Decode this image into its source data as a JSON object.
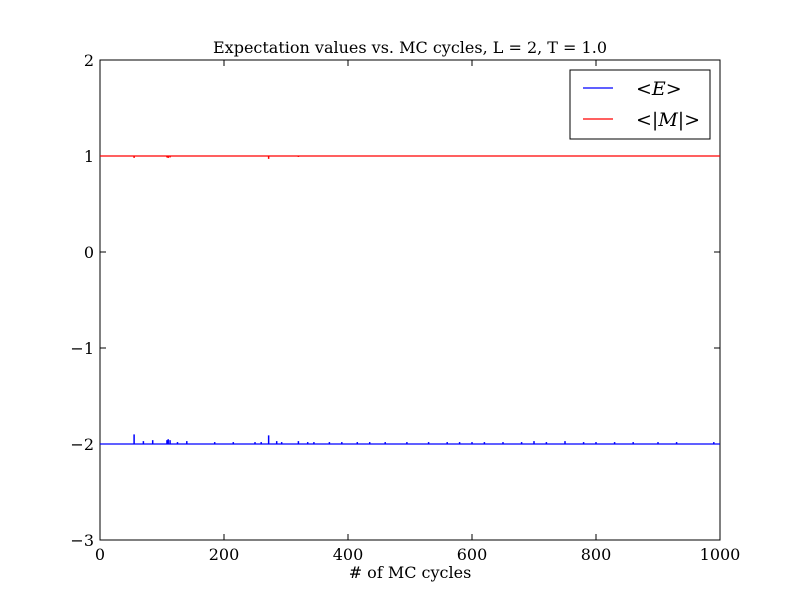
{
  "chart_data": {
    "type": "line",
    "title": "Expectation values vs. MC cycles, L = 2, T = 1.0",
    "xlabel": "# of MC cycles",
    "ylabel": "",
    "xlim": [
      0,
      1000
    ],
    "ylim": [
      -3,
      2
    ],
    "xticks": [
      0,
      200,
      400,
      600,
      800,
      1000
    ],
    "xtick_labels": [
      "0",
      "200",
      "400",
      "600",
      "800",
      "1000"
    ],
    "yticks": [
      -3,
      -2,
      -1,
      0,
      1,
      2
    ],
    "ytick_labels": [
      "−3",
      "−2",
      "−1",
      "0",
      "1",
      "2"
    ],
    "grid": false,
    "legend_position": "top-right",
    "series": [
      {
        "name": "<E>",
        "color": "#0000ff",
        "baseline": -2.0,
        "spikes": [
          [
            55,
            -1.9
          ],
          [
            70,
            -1.97
          ],
          [
            85,
            -1.96
          ],
          [
            108,
            -1.96
          ],
          [
            110,
            -1.95
          ],
          [
            113,
            -1.96
          ],
          [
            125,
            -1.98
          ],
          [
            140,
            -1.97
          ],
          [
            185,
            -1.98
          ],
          [
            215,
            -1.98
          ],
          [
            250,
            -1.98
          ],
          [
            260,
            -1.98
          ],
          [
            272,
            -1.91
          ],
          [
            285,
            -1.97
          ],
          [
            293,
            -1.98
          ],
          [
            320,
            -1.97
          ],
          [
            335,
            -1.98
          ],
          [
            345,
            -1.98
          ],
          [
            370,
            -1.98
          ],
          [
            390,
            -1.98
          ],
          [
            415,
            -1.98
          ],
          [
            435,
            -1.98
          ],
          [
            460,
            -1.98
          ],
          [
            495,
            -1.98
          ],
          [
            530,
            -1.98
          ],
          [
            560,
            -1.98
          ],
          [
            580,
            -1.98
          ],
          [
            600,
            -1.98
          ],
          [
            620,
            -1.98
          ],
          [
            650,
            -1.98
          ],
          [
            680,
            -1.98
          ],
          [
            700,
            -1.97
          ],
          [
            720,
            -1.98
          ],
          [
            750,
            -1.97
          ],
          [
            780,
            -1.98
          ],
          [
            800,
            -1.98
          ],
          [
            830,
            -1.98
          ],
          [
            860,
            -1.98
          ],
          [
            900,
            -1.98
          ],
          [
            930,
            -1.98
          ],
          [
            990,
            -1.98
          ]
        ]
      },
      {
        "name": "<|M|>",
        "color": "#ff0000",
        "baseline": 1.0,
        "spikes": [
          [
            55,
            0.98
          ],
          [
            108,
            0.985
          ],
          [
            110,
            0.98
          ],
          [
            113,
            0.985
          ],
          [
            272,
            0.97
          ],
          [
            320,
            0.99
          ]
        ]
      }
    ]
  }
}
